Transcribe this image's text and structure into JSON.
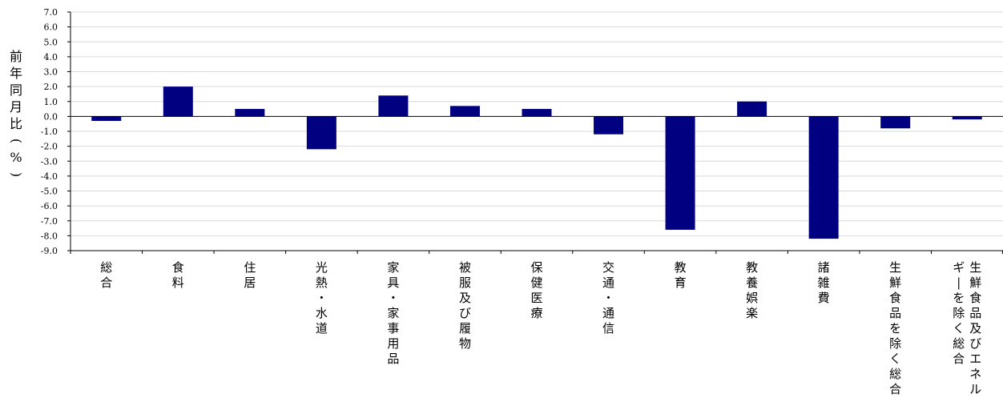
{
  "chart_data": {
    "type": "bar",
    "title": "",
    "xlabel": "",
    "ylabel": "前年同月比(%)",
    "ylim": [
      -9.0,
      7.0
    ],
    "ytick_step": 1.0,
    "yticks": [
      "7.0",
      "6.0",
      "5.0",
      "4.0",
      "3.0",
      "2.0",
      "1.0",
      "0.0",
      "-1.0",
      "-2.0",
      "-3.0",
      "-4.0",
      "-5.0",
      "-6.0",
      "-7.0",
      "-8.0",
      "-9.0"
    ],
    "grid": true,
    "legend": "none",
    "categories": [
      "総合",
      "食料",
      "住居",
      "光熱・水道",
      "家具・家事用品",
      "被服及び履物",
      "保健医療",
      "交通・通信",
      "教育",
      "教養娯楽",
      "諸雑費",
      "生鮮食品を除く総合",
      "生鮮食品及びエネルギーを除く総合"
    ],
    "values": [
      -0.3,
      2.0,
      0.5,
      -2.2,
      1.4,
      0.7,
      0.5,
      -1.2,
      -7.6,
      1.0,
      -8.2,
      -0.8,
      -0.2
    ]
  },
  "colors": {
    "bar": "#000080",
    "grid": "#d9d9d9",
    "axis": "#000000"
  }
}
